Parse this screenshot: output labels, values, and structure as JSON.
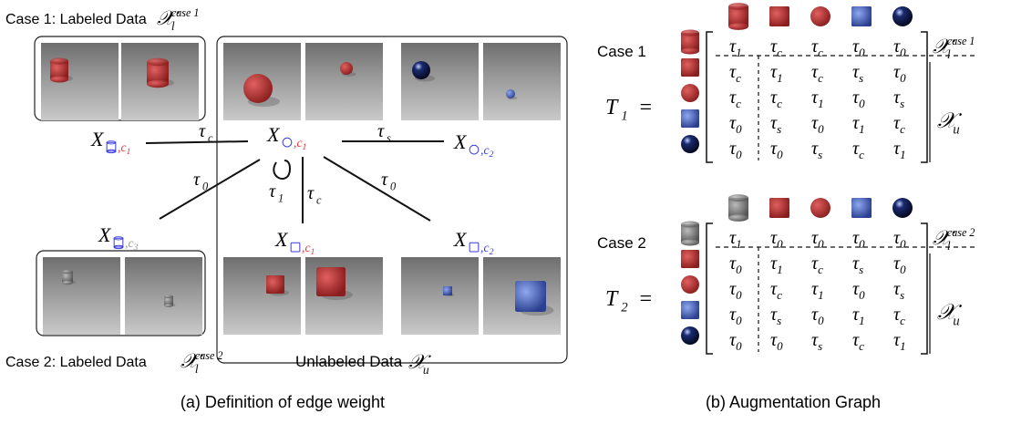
{
  "panel_a": {
    "case1_label": "Case 1: Labeled Data",
    "case1_set": {
      "sym": "𝒳",
      "sub": "l",
      "sup": "case 1"
    },
    "case2_label": "Case 2: Labeled Data",
    "case2_set": {
      "sym": "𝒳",
      "sub": "l",
      "sup": "case 2"
    },
    "unlabeled_label": "Unlabeled Data",
    "unlabeled_set": {
      "sym": "𝒳",
      "sub": "u"
    },
    "nodes": [
      {
        "sym": "X",
        "sub": ",c",
        "idx": "1",
        "color": "#e8343a"
      },
      {
        "sym": "X",
        "sub": ",c",
        "idx": "1",
        "color": "#e8343a"
      },
      {
        "sym": "X",
        "sub": ",c",
        "idx": "2",
        "color": "#3a3ae0"
      },
      {
        "sym": "X",
        "sub": ",c",
        "idx": "3",
        "color": "#999999"
      },
      {
        "sym": "X",
        "sub": ",c",
        "idx": "1",
        "color": "#e8343a"
      },
      {
        "sym": "X",
        "sub": ",c",
        "idx": "2",
        "color": "#3a3ae0"
      }
    ],
    "edges": [
      {
        "sym": "τ",
        "sub": "c"
      },
      {
        "sym": "τ",
        "sub": "s"
      },
      {
        "sym": "τ",
        "sub": "0"
      },
      {
        "sym": "τ",
        "sub": "1"
      },
      {
        "sym": "τ",
        "sub": "c"
      },
      {
        "sym": "τ",
        "sub": "0"
      }
    ],
    "caption": "(a) Definition of edge weight"
  },
  "panel_b": {
    "caption": "(b) Augmentation Graph",
    "graphs": [
      {
        "case": "Case 1",
        "name": {
          "sym": "T",
          "sub": "1"
        },
        "equals": "=",
        "symbol": "τ",
        "labeled_set": {
          "sym": "𝒳",
          "sub": "l",
          "sup": "case 1"
        },
        "unlabeled_set": {
          "sym": "𝒳",
          "sub": "u"
        },
        "entries": [
          [
            "1",
            "c",
            "c",
            "0",
            "0"
          ],
          [
            "c",
            "1",
            "c",
            "s",
            "0"
          ],
          [
            "c",
            "c",
            "1",
            "0",
            "s"
          ],
          [
            "0",
            "s",
            "0",
            "1",
            "c"
          ],
          [
            "0",
            "0",
            "s",
            "c",
            "1"
          ]
        ]
      },
      {
        "case": "Case 2",
        "name": {
          "sym": "T",
          "sub": "2"
        },
        "equals": "=",
        "symbol": "τ",
        "labeled_set": {
          "sym": "𝒳",
          "sub": "l",
          "sup": "case 2"
        },
        "unlabeled_set": {
          "sym": "𝒳",
          "sub": "u"
        },
        "entries": [
          [
            "1",
            "0",
            "0",
            "0",
            "0"
          ],
          [
            "0",
            "1",
            "c",
            "s",
            "0"
          ],
          [
            "0",
            "c",
            "1",
            "0",
            "s"
          ],
          [
            "0",
            "s",
            "0",
            "1",
            "c"
          ],
          [
            "0",
            "0",
            "s",
            "c",
            "1"
          ]
        ]
      }
    ]
  }
}
